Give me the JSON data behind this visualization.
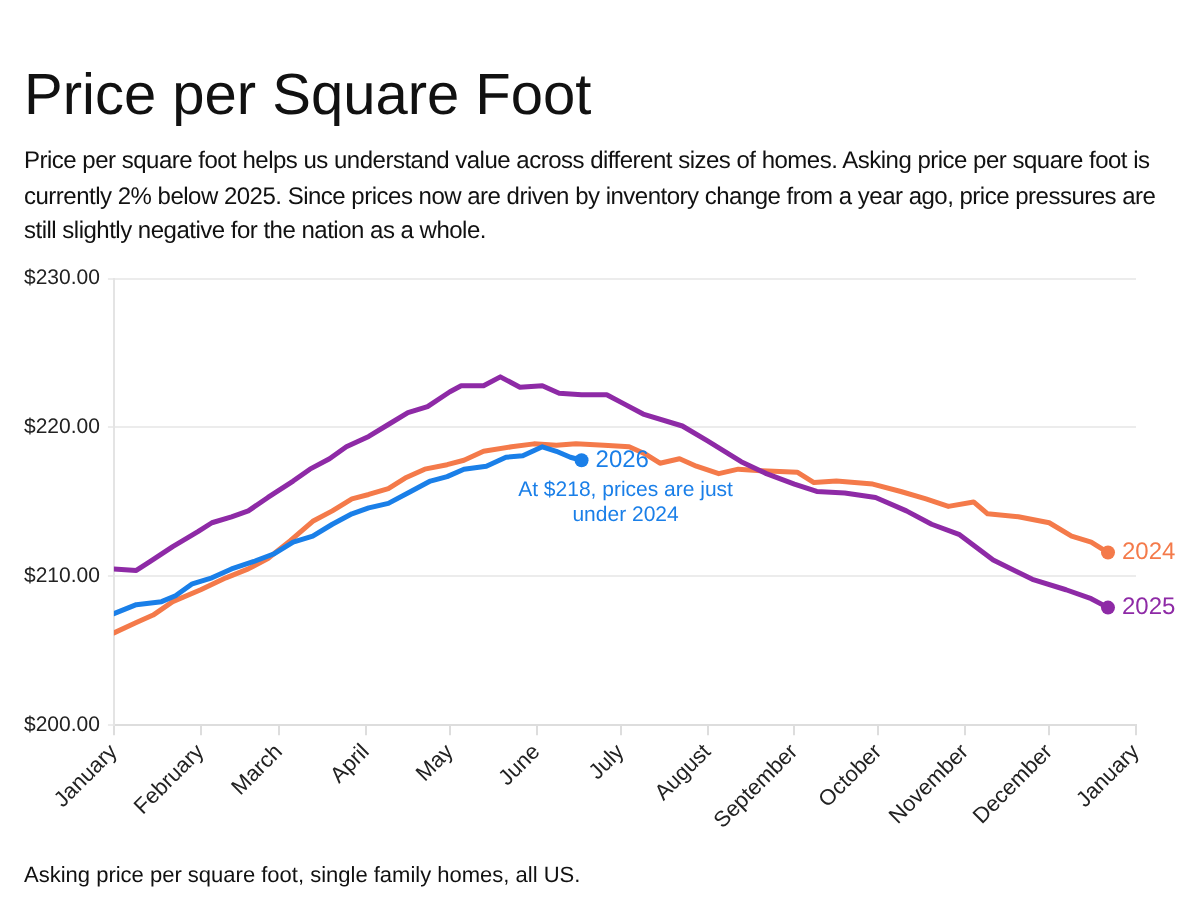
{
  "chart_data": {
    "type": "line",
    "title": "Price per Square Foot",
    "subtitle": "Price per square foot helps us understand value across different sizes of homes. Asking price per square foot is currently 2% below 2025. Since prices now are driven by inventory change from a year ago, price pressures are still slightly negative for the nation as a whole.",
    "xlim": [
      "2025-01-01",
      "2026-01-01"
    ],
    "xticks": [
      {
        "value": "2025-01-01",
        "label": "January"
      },
      {
        "value": "2025-02-01",
        "label": "February"
      },
      {
        "value": "2025-03-01",
        "label": "March"
      },
      {
        "value": "2025-04-01",
        "label": "April"
      },
      {
        "value": "2025-05-01",
        "label": "May"
      },
      {
        "value": "2025-06-01",
        "label": "June"
      },
      {
        "value": "2025-07-01",
        "label": "July"
      },
      {
        "value": "2025-08-01",
        "label": "August"
      },
      {
        "value": "2025-09-01",
        "label": "September"
      },
      {
        "value": "2025-10-01",
        "label": "October"
      },
      {
        "value": "2025-11-01",
        "label": "November"
      },
      {
        "value": "2025-12-01",
        "label": "December"
      },
      {
        "value": "2026-01-01",
        "label": "January"
      }
    ],
    "ylim": [
      200,
      230
    ],
    "yticks": [
      {
        "value": 200,
        "label": "$200.00"
      },
      {
        "value": 210,
        "label": "$210.00"
      },
      {
        "value": 220,
        "label": "$220.00"
      },
      {
        "value": 230,
        "label": "$230.00"
      }
    ],
    "grid": "y",
    "legend": false,
    "series": [
      {
        "name": "2024",
        "color": "#f47a4a",
        "x": [
          "2025-01-01",
          "2025-01-09",
          "2025-01-15",
          "2025-01-22",
          "2025-02-01",
          "2025-02-10",
          "2025-02-18",
          "2025-02-25",
          "2025-03-05",
          "2025-03-13",
          "2025-03-20",
          "2025-03-27",
          "2025-04-02",
          "2025-04-09",
          "2025-04-15",
          "2025-04-22",
          "2025-04-30",
          "2025-05-06",
          "2025-05-13",
          "2025-05-23",
          "2025-05-31",
          "2025-06-08",
          "2025-06-15",
          "2025-06-25",
          "2025-07-04",
          "2025-07-10",
          "2025-07-15",
          "2025-07-22",
          "2025-07-28",
          "2025-08-05",
          "2025-08-12",
          "2025-08-20",
          "2025-09-02",
          "2025-09-08",
          "2025-09-16",
          "2025-09-29",
          "2025-10-09",
          "2025-10-18",
          "2025-10-26",
          "2025-11-04",
          "2025-11-09",
          "2025-11-20",
          "2025-12-01",
          "2025-12-09",
          "2025-12-16",
          "2025-12-22"
        ],
        "values": [
          206.2,
          206.9,
          207.4,
          208.3,
          209.1,
          209.9,
          210.5,
          211.2,
          212.4,
          213.7,
          214.4,
          215.2,
          215.5,
          215.9,
          216.6,
          217.2,
          217.5,
          217.8,
          218.4,
          218.7,
          218.9,
          218.8,
          218.9,
          218.8,
          218.7,
          218.2,
          217.6,
          217.9,
          217.4,
          216.9,
          217.2,
          217.1,
          217.0,
          216.3,
          216.4,
          216.2,
          215.7,
          215.2,
          214.7,
          215.0,
          214.2,
          214.0,
          213.6,
          212.7,
          212.3,
          211.6
        ]
      },
      {
        "name": "2025",
        "color": "#8e2aa6",
        "x": [
          "2025-01-01",
          "2025-01-09",
          "2025-01-14",
          "2025-01-22",
          "2025-01-31",
          "2025-02-05",
          "2025-02-12",
          "2025-02-18",
          "2025-02-25",
          "2025-03-06",
          "2025-03-12",
          "2025-03-19",
          "2025-03-25",
          "2025-04-02",
          "2025-04-09",
          "2025-04-16",
          "2025-04-23",
          "2025-05-01",
          "2025-05-05",
          "2025-05-13",
          "2025-05-19",
          "2025-05-26",
          "2025-06-03",
          "2025-06-09",
          "2025-06-17",
          "2025-06-26",
          "2025-07-02",
          "2025-07-09",
          "2025-07-23",
          "2025-08-01",
          "2025-08-13",
          "2025-08-22",
          "2025-09-01",
          "2025-09-09",
          "2025-09-19",
          "2025-09-30",
          "2025-10-11",
          "2025-10-20",
          "2025-10-30",
          "2025-11-11",
          "2025-11-25",
          "2025-12-07",
          "2025-12-16",
          "2025-12-22"
        ],
        "values": [
          210.5,
          210.4,
          211.0,
          212.0,
          213.0,
          213.6,
          214.0,
          214.4,
          215.3,
          216.4,
          217.2,
          217.9,
          218.7,
          219.4,
          220.2,
          221.0,
          221.4,
          222.4,
          222.8,
          222.8,
          223.4,
          222.7,
          222.8,
          222.3,
          222.2,
          222.2,
          221.6,
          220.9,
          220.1,
          219.1,
          217.7,
          216.9,
          216.2,
          215.7,
          215.6,
          215.3,
          214.4,
          213.5,
          212.8,
          211.1,
          209.8,
          209.1,
          208.5,
          207.9
        ]
      },
      {
        "name": "2026",
        "color": "#1a7fe8",
        "x": [
          "2025-01-01",
          "2025-01-09",
          "2025-01-18",
          "2025-01-23",
          "2025-01-29",
          "2025-02-05",
          "2025-02-12",
          "2025-02-20",
          "2025-02-27",
          "2025-03-06",
          "2025-03-13",
          "2025-03-20",
          "2025-03-27",
          "2025-04-02",
          "2025-04-09",
          "2025-04-17",
          "2025-04-24",
          "2025-04-30",
          "2025-05-06",
          "2025-05-14",
          "2025-05-21",
          "2025-05-27",
          "2025-06-03",
          "2025-06-08",
          "2025-06-13",
          "2025-06-17"
        ],
        "values": [
          207.5,
          208.1,
          208.3,
          208.7,
          209.5,
          209.9,
          210.5,
          211.0,
          211.5,
          212.3,
          212.7,
          213.5,
          214.2,
          214.6,
          214.9,
          215.7,
          216.4,
          216.7,
          217.2,
          217.4,
          218.0,
          218.1,
          218.7,
          218.4,
          218.0,
          217.8
        ]
      }
    ],
    "annotations": [
      {
        "text": "At $218, prices are just under 2024",
        "x": "2025-06-17",
        "y": 217.8
      },
      "Asking price per square foot, single family homes, all US."
    ]
  }
}
